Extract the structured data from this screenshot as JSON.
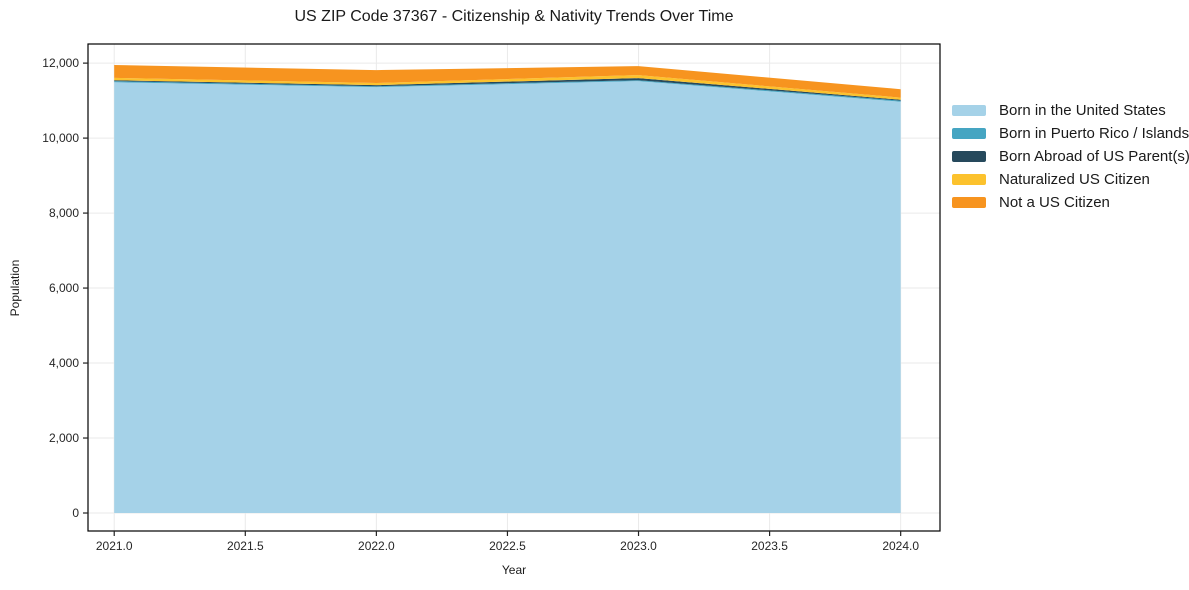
{
  "chart_data": {
    "type": "area",
    "stacked": true,
    "title": "US ZIP Code 37367 - Citizenship & Nativity Trends Over Time",
    "xlabel": "Year",
    "ylabel": "Population",
    "x": [
      2021,
      2022,
      2023,
      2024
    ],
    "series": [
      {
        "name": "Born in the United States",
        "color": "#a5d2e8",
        "values": [
          11490,
          11360,
          11520,
          10970
        ]
      },
      {
        "name": "Born in Puerto Rico / Islands",
        "color": "#45a5c2",
        "values": [
          30,
          25,
          25,
          30
        ]
      },
      {
        "name": "Born Abroad of US Parent(s)",
        "color": "#26495c",
        "values": [
          25,
          30,
          55,
          25
        ]
      },
      {
        "name": "Naturalized US Citizen",
        "color": "#fcc22d",
        "values": [
          60,
          55,
          80,
          55
        ]
      },
      {
        "name": "Not a US Citizen",
        "color": "#f7941f",
        "values": [
          345,
          345,
          240,
          225
        ]
      }
    ],
    "xlim": [
      2020.9,
      2024.15
    ],
    "ylim": [
      -480,
      12510
    ],
    "xticks": [
      2021.0,
      2021.5,
      2022.0,
      2022.5,
      2023.0,
      2023.5,
      2024.0
    ],
    "xtick_labels": [
      "2021.0",
      "2021.5",
      "2022.0",
      "2022.5",
      "2023.0",
      "2023.5",
      "2024.0"
    ],
    "yticks": [
      0,
      2000,
      4000,
      6000,
      8000,
      10000,
      12000
    ],
    "ytick_labels": [
      "0",
      "2,000",
      "4,000",
      "6,000",
      "8,000",
      "10,000",
      "12,000"
    ],
    "grid": true,
    "legend_position": "right-outside"
  },
  "colors": {
    "grid": "#eaeaea",
    "spine": "#000000",
    "tick": "#222222",
    "tick_label": "#262626"
  }
}
